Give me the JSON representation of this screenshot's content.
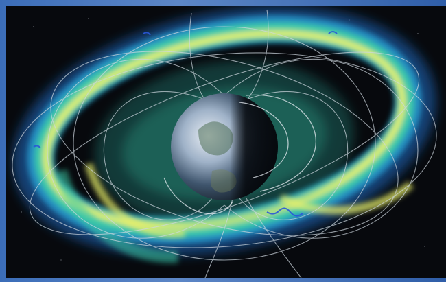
{
  "image": {
    "subject": "earth-with-radiation-belts",
    "icons": [
      "earth-icon"
    ],
    "colors": {
      "space": "#07090d",
      "belt_outer": "#1f7fd0",
      "belt_mid": "#3fd0a0",
      "belt_core": "#e8f06a",
      "field_lines": "#cfd8e0",
      "trajectories": "#2a58d8",
      "frame": "#3b6db8"
    }
  }
}
